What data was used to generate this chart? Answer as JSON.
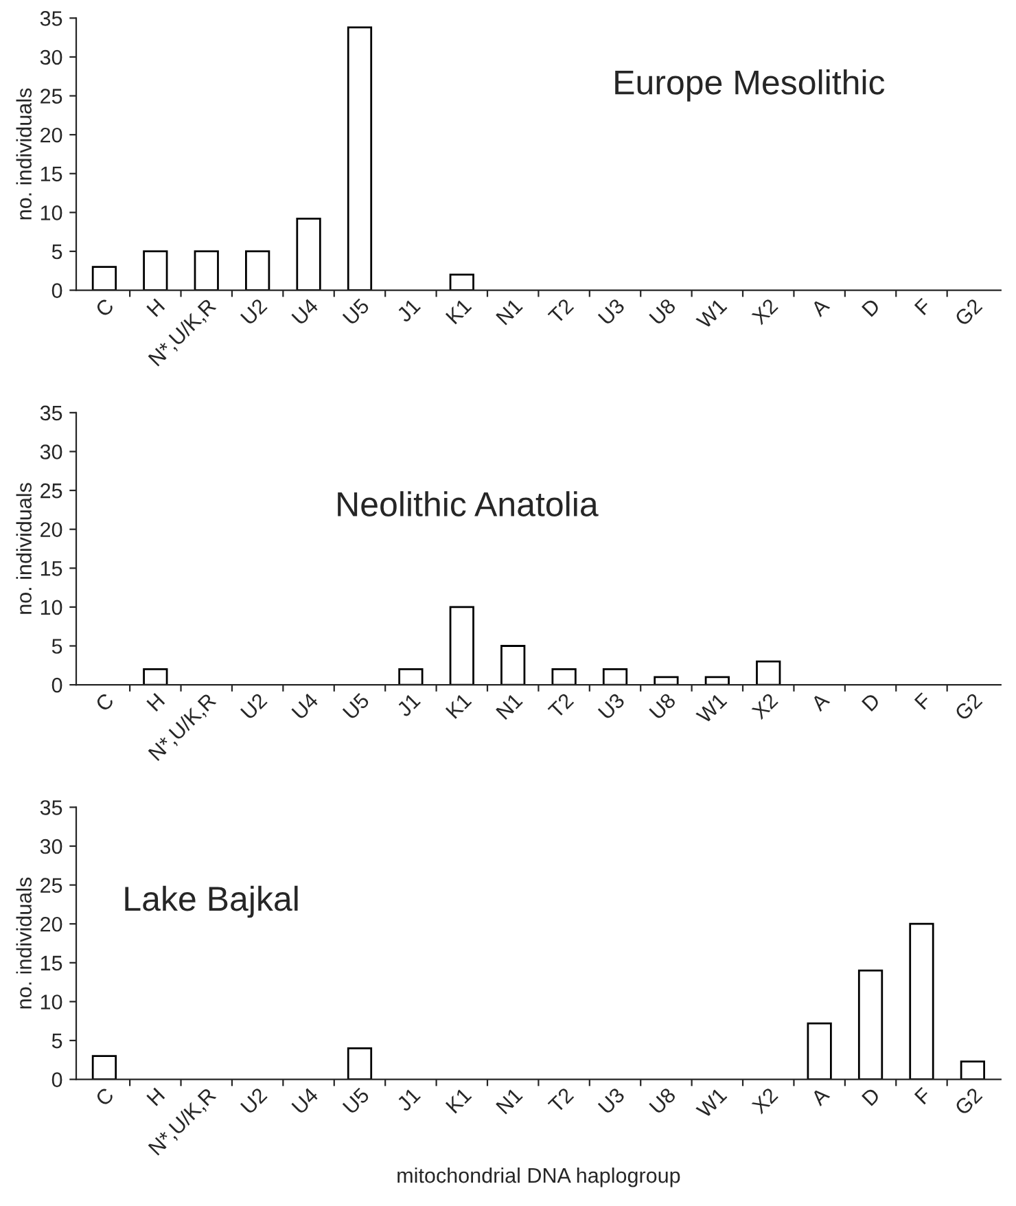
{
  "chart_data": [
    {
      "type": "bar",
      "title": "Europe Mesolithic",
      "ylabel": "no. individuals",
      "categories": [
        "C",
        "H",
        "N*,U/K,R",
        "U2",
        "U4",
        "U5",
        "J1",
        "K1",
        "N1",
        "T2",
        "U3",
        "U8",
        "W1",
        "X2",
        "A",
        "D",
        "F",
        "G2"
      ],
      "values": [
        3,
        5,
        5,
        5,
        9.2,
        33.8,
        null,
        2,
        null,
        null,
        null,
        null,
        null,
        null,
        null,
        null,
        null,
        null
      ],
      "color": "#ffffff",
      "ylim": [
        0,
        35
      ],
      "yticks": [
        0,
        5,
        10,
        15,
        20,
        25,
        30,
        35
      ],
      "grid": false,
      "legend": false
    },
    {
      "type": "bar",
      "title": "Neolithic Anatolia",
      "ylabel": "no. individuals",
      "categories": [
        "C",
        "H",
        "N*,U/K,R",
        "U2",
        "U4",
        "U5",
        "J1",
        "K1",
        "N1",
        "T2",
        "U3",
        "U8",
        "W1",
        "X2",
        "A",
        "D",
        "F",
        "G2"
      ],
      "values": [
        null,
        2,
        null,
        null,
        null,
        null,
        2,
        10,
        5,
        2,
        2,
        1,
        1,
        3,
        null,
        null,
        null,
        null
      ],
      "color": "#ffffff",
      "ylim": [
        0,
        35
      ],
      "yticks": [
        0,
        5,
        10,
        15,
        20,
        25,
        30,
        35
      ],
      "grid": false,
      "legend": false
    },
    {
      "type": "bar",
      "title": "Lake Bajkal",
      "ylabel": "no. individuals",
      "xlabel": "mitochondrial DNA haplogroup",
      "categories": [
        "C",
        "H",
        "N*,U/K,R",
        "U2",
        "U4",
        "U5",
        "J1",
        "K1",
        "N1",
        "T2",
        "U3",
        "U8",
        "W1",
        "X2",
        "A",
        "D",
        "F",
        "G2"
      ],
      "values": [
        3,
        null,
        null,
        null,
        null,
        4,
        null,
        null,
        null,
        null,
        null,
        null,
        null,
        null,
        7.2,
        14,
        20,
        2.3
      ],
      "color": "#ffffff",
      "ylim": [
        0,
        35
      ],
      "yticks": [
        0,
        5,
        10,
        15,
        20,
        25,
        30,
        35
      ],
      "grid": false,
      "legend": false
    }
  ]
}
